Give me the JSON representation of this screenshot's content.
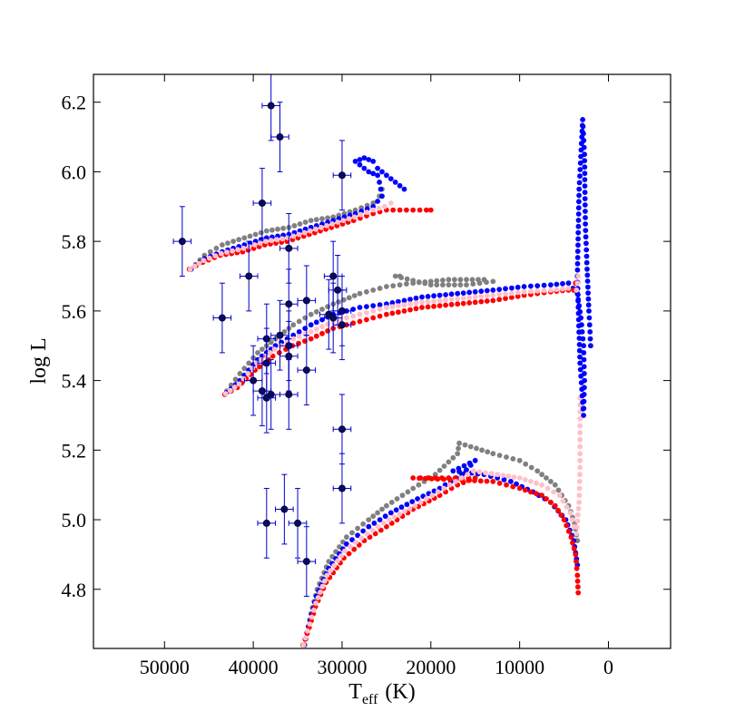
{
  "chart_data": {
    "type": "scatter",
    "title": "",
    "xlabel_main": "T",
    "xlabel_sub": "eff",
    "xlabel_unit": "(K)",
    "ylabel": "log L",
    "xlim": [
      58000,
      -7000
    ],
    "ylim": [
      4.63,
      6.28
    ],
    "xticks": [
      50000,
      40000,
      30000,
      20000,
      10000,
      0
    ],
    "xtick_labels": [
      "50000",
      "40000",
      "30000",
      "20000",
      "10000",
      "0"
    ],
    "yticks": [
      4.8,
      5.0,
      5.2,
      5.4,
      5.6,
      5.8,
      6.0,
      6.2
    ],
    "ytick_labels": [
      "4.8",
      "5.0",
      "5.2",
      "5.4",
      "5.6",
      "5.8",
      "6.0",
      "6.2"
    ],
    "colors": {
      "gray": "#808080",
      "blue": "#0000ff",
      "red": "#ff0000",
      "pink": "#ffc0cb",
      "obs": "#0a0a60",
      "errbar": "#0000cc"
    },
    "series": [
      {
        "name": "low-mass gray",
        "color": "gray",
        "points": [
          [
            34200,
            4.64
          ],
          [
            33500,
            4.73
          ],
          [
            32800,
            4.8
          ],
          [
            31500,
            4.88
          ],
          [
            29500,
            4.95
          ],
          [
            27000,
            5.0
          ],
          [
            25000,
            5.04
          ],
          [
            22000,
            5.09
          ],
          [
            19500,
            5.13
          ],
          [
            17000,
            5.19
          ],
          [
            16800,
            5.22
          ],
          [
            15500,
            5.21
          ],
          [
            13000,
            5.19
          ],
          [
            10000,
            5.17
          ],
          [
            8000,
            5.14
          ],
          [
            6000,
            5.1
          ],
          [
            4500,
            5.04
          ],
          [
            3800,
            4.99
          ],
          [
            3500,
            4.94
          ]
        ]
      },
      {
        "name": "low-mass blue",
        "color": "blue",
        "points": [
          [
            34300,
            4.64
          ],
          [
            33600,
            4.71
          ],
          [
            32900,
            4.78
          ],
          [
            31500,
            4.86
          ],
          [
            29500,
            4.93
          ],
          [
            27000,
            4.98
          ],
          [
            24500,
            5.02
          ],
          [
            21500,
            5.06
          ],
          [
            19000,
            5.09
          ],
          [
            16500,
            5.13
          ],
          [
            15000,
            5.17
          ],
          [
            17500,
            5.14
          ],
          [
            14000,
            5.13
          ],
          [
            11000,
            5.11
          ],
          [
            8500,
            5.08
          ],
          [
            6500,
            5.05
          ],
          [
            4800,
            5.0
          ],
          [
            3900,
            4.94
          ],
          [
            3500,
            4.87
          ]
        ]
      },
      {
        "name": "low-mass red",
        "color": "red",
        "points": [
          [
            34400,
            4.64
          ],
          [
            33700,
            4.69
          ],
          [
            33000,
            4.75
          ],
          [
            31800,
            4.82
          ],
          [
            29800,
            4.89
          ],
          [
            27500,
            4.94
          ],
          [
            25000,
            4.98
          ],
          [
            22000,
            5.03
          ],
          [
            19000,
            5.07
          ],
          [
            17000,
            5.1
          ],
          [
            15000,
            5.12
          ],
          [
            19500,
            5.12
          ],
          [
            22000,
            5.12
          ],
          [
            13000,
            5.11
          ],
          [
            10000,
            5.09
          ],
          [
            7500,
            5.07
          ],
          [
            6000,
            5.04
          ],
          [
            5000,
            5.0
          ],
          [
            4200,
            4.95
          ],
          [
            3700,
            4.9
          ],
          [
            3500,
            4.84
          ],
          [
            3400,
            4.79
          ]
        ]
      },
      {
        "name": "low-mass pink",
        "color": "pink",
        "points": [
          [
            34350,
            4.64
          ],
          [
            33650,
            4.7
          ],
          [
            32950,
            4.76
          ],
          [
            31700,
            4.84
          ],
          [
            29700,
            4.91
          ],
          [
            27200,
            4.96
          ],
          [
            24700,
            5.0
          ],
          [
            21800,
            5.04
          ],
          [
            19200,
            5.08
          ],
          [
            17200,
            5.11
          ],
          [
            15200,
            5.14
          ],
          [
            12500,
            5.13
          ],
          [
            10000,
            5.12
          ],
          [
            7500,
            5.1
          ],
          [
            5500,
            5.07
          ],
          [
            4300,
            5.02
          ],
          [
            3600,
            4.96
          ],
          [
            3300,
            5.05
          ],
          [
            3200,
            5.15
          ],
          [
            3200,
            5.25
          ],
          [
            3200,
            5.35
          ]
        ]
      },
      {
        "name": "mid-mass gray",
        "color": "gray",
        "points": [
          [
            43000,
            5.37
          ],
          [
            41500,
            5.42
          ],
          [
            39500,
            5.48
          ],
          [
            37500,
            5.52
          ],
          [
            35500,
            5.56
          ],
          [
            33500,
            5.59
          ],
          [
            31000,
            5.62
          ],
          [
            28000,
            5.65
          ],
          [
            25000,
            5.67
          ],
          [
            22000,
            5.68
          ],
          [
            18000,
            5.69
          ],
          [
            14000,
            5.69
          ],
          [
            13000,
            5.685
          ],
          [
            16000,
            5.675
          ],
          [
            20000,
            5.675
          ],
          [
            24000,
            5.7
          ],
          [
            23500,
            5.7
          ]
        ]
      },
      {
        "name": "mid-mass blue",
        "color": "blue",
        "points": [
          [
            43000,
            5.365
          ],
          [
            41500,
            5.4
          ],
          [
            39500,
            5.46
          ],
          [
            37500,
            5.5
          ],
          [
            35500,
            5.53
          ],
          [
            33500,
            5.56
          ],
          [
            31000,
            5.59
          ],
          [
            28000,
            5.61
          ],
          [
            25000,
            5.62
          ],
          [
            21000,
            5.64
          ],
          [
            17000,
            5.65
          ],
          [
            13000,
            5.66
          ],
          [
            9500,
            5.67
          ],
          [
            6500,
            5.675
          ],
          [
            4500,
            5.68
          ],
          [
            3500,
            5.65
          ],
          [
            3100,
            5.58
          ],
          [
            2800,
            5.5
          ],
          [
            2700,
            5.4
          ],
          [
            2800,
            5.3
          ],
          [
            3200,
            5.45
          ],
          [
            3500,
            5.7
          ],
          [
            3300,
            5.95
          ],
          [
            3000,
            6.1
          ],
          [
            2900,
            6.15
          ],
          [
            2700,
            6.05
          ],
          [
            2600,
            5.85
          ],
          [
            2400,
            5.72
          ],
          [
            2200,
            5.6
          ],
          [
            2000,
            5.5
          ]
        ]
      },
      {
        "name": "mid-mass red",
        "color": "red",
        "points": [
          [
            43200,
            5.36
          ],
          [
            41800,
            5.38
          ],
          [
            39800,
            5.43
          ],
          [
            37800,
            5.47
          ],
          [
            35600,
            5.5
          ],
          [
            33500,
            5.52
          ],
          [
            31000,
            5.55
          ],
          [
            28000,
            5.57
          ],
          [
            25000,
            5.59
          ],
          [
            21000,
            5.61
          ],
          [
            17000,
            5.62
          ],
          [
            13000,
            5.63
          ],
          [
            9500,
            5.645
          ],
          [
            6500,
            5.655
          ],
          [
            4500,
            5.66
          ],
          [
            3900,
            5.66
          ],
          [
            3700,
            5.68
          ]
        ]
      },
      {
        "name": "mid-mass pink",
        "color": "pink",
        "points": [
          [
            43100,
            5.362
          ],
          [
            41600,
            5.39
          ],
          [
            39600,
            5.45
          ],
          [
            37600,
            5.49
          ],
          [
            35500,
            5.52
          ],
          [
            33500,
            5.54
          ],
          [
            31000,
            5.57
          ],
          [
            28000,
            5.59
          ],
          [
            25000,
            5.61
          ],
          [
            21000,
            5.625
          ],
          [
            17000,
            5.635
          ],
          [
            13000,
            5.645
          ],
          [
            9500,
            5.655
          ],
          [
            6500,
            5.66
          ],
          [
            4500,
            5.665
          ],
          [
            3600,
            5.66
          ],
          [
            3400,
            5.7
          ]
        ]
      },
      {
        "name": "high-mass gray",
        "color": "gray",
        "points": [
          [
            47000,
            5.72
          ],
          [
            45500,
            5.76
          ],
          [
            43500,
            5.79
          ],
          [
            41000,
            5.81
          ],
          [
            38500,
            5.83
          ],
          [
            36000,
            5.84
          ],
          [
            33500,
            5.86
          ],
          [
            31000,
            5.87
          ],
          [
            28500,
            5.89
          ],
          [
            26500,
            5.91
          ],
          [
            25800,
            5.93
          ],
          [
            25500,
            5.95
          ]
        ]
      },
      {
        "name": "high-mass blue",
        "color": "blue",
        "points": [
          [
            47000,
            5.72
          ],
          [
            45500,
            5.75
          ],
          [
            43500,
            5.77
          ],
          [
            41000,
            5.79
          ],
          [
            38500,
            5.81
          ],
          [
            36000,
            5.82
          ],
          [
            33500,
            5.84
          ],
          [
            31000,
            5.86
          ],
          [
            28500,
            5.88
          ],
          [
            26500,
            5.9
          ],
          [
            25500,
            5.93
          ],
          [
            25800,
            5.97
          ],
          [
            26000,
            5.99
          ],
          [
            27000,
            6.0
          ],
          [
            28000,
            6.02
          ],
          [
            28500,
            6.03
          ],
          [
            27500,
            6.04
          ],
          [
            26500,
            6.03
          ],
          [
            26000,
            6.01
          ],
          [
            25000,
            5.99
          ],
          [
            24000,
            5.97
          ],
          [
            23500,
            5.96
          ],
          [
            23000,
            5.95
          ]
        ]
      },
      {
        "name": "high-mass red",
        "color": "red",
        "points": [
          [
            47200,
            5.72
          ],
          [
            45700,
            5.74
          ],
          [
            43700,
            5.76
          ],
          [
            41200,
            5.77
          ],
          [
            38700,
            5.79
          ],
          [
            36200,
            5.8
          ],
          [
            33700,
            5.82
          ],
          [
            31200,
            5.84
          ],
          [
            28700,
            5.86
          ],
          [
            26500,
            5.88
          ],
          [
            25000,
            5.89
          ],
          [
            23500,
            5.89
          ],
          [
            22000,
            5.89
          ],
          [
            20500,
            5.89
          ],
          [
            20000,
            5.89
          ]
        ]
      },
      {
        "name": "high-mass pink",
        "color": "pink",
        "points": [
          [
            47100,
            5.72
          ],
          [
            45600,
            5.745
          ],
          [
            43600,
            5.765
          ],
          [
            41100,
            5.78
          ],
          [
            38600,
            5.8
          ],
          [
            36100,
            5.81
          ],
          [
            33600,
            5.83
          ],
          [
            31100,
            5.85
          ],
          [
            28600,
            5.87
          ],
          [
            26500,
            5.89
          ],
          [
            25200,
            5.9
          ],
          [
            24500,
            5.91
          ]
        ]
      }
    ],
    "observations": [
      {
        "teff": 48000,
        "logL": 5.8,
        "xerr": 1000,
        "yerr": 0.1
      },
      {
        "teff": 38000,
        "logL": 6.19,
        "xerr": 1000,
        "yerr": 0.1
      },
      {
        "teff": 37000,
        "logL": 6.1,
        "xerr": 1000,
        "yerr": 0.1
      },
      {
        "teff": 30000,
        "logL": 5.99,
        "xerr": 1000,
        "yerr": 0.1
      },
      {
        "teff": 39000,
        "logL": 5.91,
        "xerr": 1000,
        "yerr": 0.1
      },
      {
        "teff": 36000,
        "logL": 5.78,
        "xerr": 1000,
        "yerr": 0.1
      },
      {
        "teff": 40500,
        "logL": 5.7,
        "xerr": 1000,
        "yerr": 0.1
      },
      {
        "teff": 31000,
        "logL": 5.7,
        "xerr": 1000,
        "yerr": 0.1
      },
      {
        "teff": 30500,
        "logL": 5.66,
        "xerr": 1000,
        "yerr": 0.1
      },
      {
        "teff": 34000,
        "logL": 5.63,
        "xerr": 1000,
        "yerr": 0.1
      },
      {
        "teff": 36000,
        "logL": 5.62,
        "xerr": 1000,
        "yerr": 0.1
      },
      {
        "teff": 30000,
        "logL": 5.6,
        "xerr": 1000,
        "yerr": 0.1
      },
      {
        "teff": 31500,
        "logL": 5.59,
        "xerr": 1000,
        "yerr": 0.1
      },
      {
        "teff": 31000,
        "logL": 5.58,
        "xerr": 1000,
        "yerr": 0.1
      },
      {
        "teff": 43500,
        "logL": 5.58,
        "xerr": 1000,
        "yerr": 0.1
      },
      {
        "teff": 30000,
        "logL": 5.56,
        "xerr": 1000,
        "yerr": 0.1
      },
      {
        "teff": 37000,
        "logL": 5.53,
        "xerr": 1000,
        "yerr": 0.1
      },
      {
        "teff": 38500,
        "logL": 5.52,
        "xerr": 1000,
        "yerr": 0.1
      },
      {
        "teff": 36000,
        "logL": 5.5,
        "xerr": 1000,
        "yerr": 0.1
      },
      {
        "teff": 36000,
        "logL": 5.47,
        "xerr": 1000,
        "yerr": 0.1
      },
      {
        "teff": 38500,
        "logL": 5.45,
        "xerr": 1000,
        "yerr": 0.1
      },
      {
        "teff": 34000,
        "logL": 5.43,
        "xerr": 1000,
        "yerr": 0.1
      },
      {
        "teff": 40000,
        "logL": 5.4,
        "xerr": 1000,
        "yerr": 0.1
      },
      {
        "teff": 39000,
        "logL": 5.37,
        "xerr": 1000,
        "yerr": 0.1
      },
      {
        "teff": 38000,
        "logL": 5.36,
        "xerr": 1000,
        "yerr": 0.1
      },
      {
        "teff": 36000,
        "logL": 5.36,
        "xerr": 1000,
        "yerr": 0.1
      },
      {
        "teff": 38500,
        "logL": 5.35,
        "xerr": 1000,
        "yerr": 0.1
      },
      {
        "teff": 30000,
        "logL": 5.26,
        "xerr": 1000,
        "yerr": 0.1
      },
      {
        "teff": 30000,
        "logL": 5.09,
        "xerr": 1000,
        "yerr": 0.1
      },
      {
        "teff": 36500,
        "logL": 5.03,
        "xerr": 1000,
        "yerr": 0.1
      },
      {
        "teff": 38500,
        "logL": 4.99,
        "xerr": 1000,
        "yerr": 0.1
      },
      {
        "teff": 35000,
        "logL": 4.99,
        "xerr": 1000,
        "yerr": 0.1
      },
      {
        "teff": 34000,
        "logL": 4.88,
        "xerr": 1000,
        "yerr": 0.1
      }
    ]
  }
}
